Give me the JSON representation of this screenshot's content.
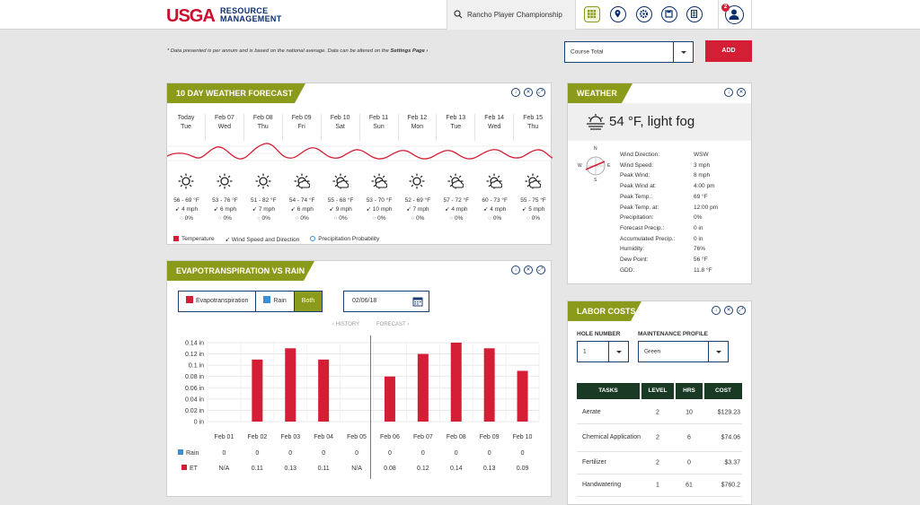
{
  "header": {
    "logo_usga": "USGA",
    "logo_line1": "RESOURCE",
    "logo_line2": "MANAGEMENT",
    "search_value": "Rancho Player Championship",
    "notification_count": "2"
  },
  "top": {
    "note_prefix": "* Data presented is per annum and is based on the national average. Data can be altered on the ",
    "note_link": "Settings Page ›",
    "course_select": "Course Total",
    "add_label": "ADD"
  },
  "forecast": {
    "title": "10 DAY WEATHER FORECAST",
    "days": [
      {
        "date": "Today",
        "dow": "Tue",
        "temp": "56 - 69 °F",
        "wind": "4 mph",
        "precip": "0%"
      },
      {
        "date": "Feb 07",
        "dow": "Wed",
        "temp": "53 - 76 °F",
        "wind": "6 mph",
        "precip": "0%"
      },
      {
        "date": "Feb 08",
        "dow": "Thu",
        "temp": "51 - 82 °F",
        "wind": "7 mph",
        "precip": "0%"
      },
      {
        "date": "Feb 09",
        "dow": "Fri",
        "temp": "54 - 74 °F",
        "wind": "6 mph",
        "precip": "0%"
      },
      {
        "date": "Feb 10",
        "dow": "Sat",
        "temp": "55 - 68 °F",
        "wind": "9 mph",
        "precip": "0%"
      },
      {
        "date": "Feb 11",
        "dow": "Sun",
        "temp": "53 - 70 °F",
        "wind": "10 mph",
        "precip": "0%"
      },
      {
        "date": "Feb 12",
        "dow": "Mon",
        "temp": "52 - 69 °F",
        "wind": "7 mph",
        "precip": "0%"
      },
      {
        "date": "Feb 13",
        "dow": "Tue",
        "temp": "57 - 72 °F",
        "wind": "4 mph",
        "precip": "0%"
      },
      {
        "date": "Feb 14",
        "dow": "Wed",
        "temp": "60 - 73 °F",
        "wind": "4 mph",
        "precip": "0%"
      },
      {
        "date": "Feb 15",
        "dow": "Thu",
        "temp": "55 - 75 °F",
        "wind": "5 mph",
        "precip": "0%"
      }
    ],
    "legend_temp": "Temperature",
    "legend_wind": "Wind Speed and Direction",
    "legend_precip": "Precipitation Probability",
    "temp_color": "#d41e35"
  },
  "weather": {
    "title": "WEATHER",
    "current": "54 °F, light fog",
    "compass": {
      "n": "N",
      "s": "S",
      "e": "E",
      "w": "W"
    },
    "rows": [
      {
        "label": "Wind Direction:",
        "value": "WSW"
      },
      {
        "label": "Wind Speed:",
        "value": "3 mph"
      },
      {
        "label": "Peak Wind:",
        "value": "8 mph"
      },
      {
        "label": "Peak Wind at:",
        "value": "4:00 pm"
      },
      {
        "label": "Peak Temp.:",
        "value": "69 °F"
      },
      {
        "label": "Peak Temp. at:",
        "value": "12:00 pm"
      },
      {
        "label": "Precipitation:",
        "value": "0%"
      },
      {
        "label": "Forecast Precip.:",
        "value": "0 in"
      },
      {
        "label": "Accumulated Precip.:",
        "value": "0 in"
      },
      {
        "label": "Humidity:",
        "value": "76%"
      },
      {
        "label": "Dew Point:",
        "value": "56 °F"
      },
      {
        "label": "GDD:",
        "value": "11.8 °F"
      }
    ]
  },
  "et": {
    "title": "EVAPOTRANSPIRATION VS RAIN",
    "tab_et": "Evapotranspiration",
    "tab_rain": "Rain",
    "tab_both": "Both",
    "date": "02/06/18",
    "history_label": "‹ HISTORY",
    "forecast_label": "FORECAST ›",
    "rain_row_label": "Rain",
    "et_row_label": "ET",
    "et_row_text": [
      "N/A",
      "0.11",
      "0.13",
      "0.11",
      "N/A",
      "0.08",
      "0.12",
      "0.14",
      "0.13",
      "0.09"
    ],
    "rain_row_text": [
      "0",
      "0",
      "0",
      "0",
      "0",
      "0",
      "0",
      "0",
      "0",
      "0"
    ]
  },
  "chart_data": {
    "type": "bar",
    "categories": [
      "Feb 01",
      "Feb 02",
      "Feb 03",
      "Feb 04",
      "Feb 05",
      "Feb 06",
      "Feb 07",
      "Feb 08",
      "Feb 09",
      "Feb 10"
    ],
    "series": [
      {
        "name": "ET",
        "values": [
          null,
          0.11,
          0.13,
          0.11,
          null,
          0.08,
          0.12,
          0.14,
          0.13,
          0.09
        ],
        "color": "#d41e35"
      },
      {
        "name": "Rain",
        "values": [
          0,
          0,
          0,
          0,
          0,
          0,
          0,
          0,
          0,
          0
        ],
        "color": "#3d8fd1"
      }
    ],
    "ylim": [
      0,
      0.14
    ],
    "yticks": [
      "0.14 in",
      "0.12 in",
      "0.1 in",
      "0.08 in",
      "0.06 in",
      "0.04 in",
      "0.02 in",
      "0 in"
    ],
    "grid": true
  },
  "labor": {
    "title": "LABOR COSTS",
    "hole_label": "HOLE NUMBER",
    "hole_value": "1",
    "profile_label": "MAINTENANCE PROFILE",
    "profile_value": "Green",
    "headers": {
      "tasks": "TASKS",
      "level": "LEVEL",
      "hrs": "HRS",
      "cost": "COST"
    },
    "rows": [
      {
        "task": "Aerate",
        "level": "2",
        "hrs": "10",
        "cost": "$129.23"
      },
      {
        "task": "Chemical Application",
        "level": "2",
        "hrs": "6",
        "cost": "$74.06"
      },
      {
        "task": "Fertilizer",
        "level": "2",
        "hrs": "0",
        "cost": "$3.37"
      },
      {
        "task": "Handwatering",
        "level": "1",
        "hrs": "61",
        "cost": "$760.2"
      }
    ]
  }
}
